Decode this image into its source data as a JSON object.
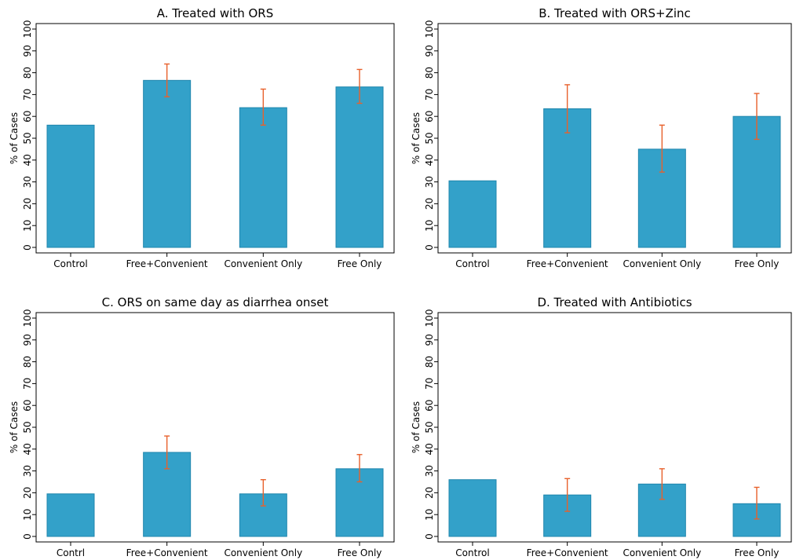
{
  "chart_data": [
    {
      "type": "bar",
      "title": "A. Treated with ORS",
      "ylabel": "% of Cases",
      "xlabel": "",
      "ylim": [
        0,
        100
      ],
      "yticks": [
        0,
        10,
        20,
        30,
        40,
        50,
        60,
        70,
        80,
        90,
        100
      ],
      "categories": [
        "Control",
        "Free+Convenient",
        "Convenient Only",
        "Free Only"
      ],
      "values": [
        56,
        76.5,
        64,
        73.5
      ],
      "error_low": [
        null,
        69,
        56,
        66
      ],
      "error_high": [
        null,
        84,
        72.5,
        81.5
      ]
    },
    {
      "type": "bar",
      "title": "B. Treated with ORS+Zinc",
      "ylabel": "% of Cases",
      "xlabel": "",
      "ylim": [
        0,
        100
      ],
      "yticks": [
        0,
        10,
        20,
        30,
        40,
        50,
        60,
        70,
        80,
        90,
        100
      ],
      "categories": [
        "Control",
        "Free+Convenient",
        "Convenient Only",
        "Free Only"
      ],
      "values": [
        30.5,
        63.5,
        45,
        60
      ],
      "error_low": [
        null,
        52.5,
        34.5,
        49.5
      ],
      "error_high": [
        null,
        74.5,
        56,
        70.5
      ]
    },
    {
      "type": "bar",
      "title": "C. ORS on same day as diarrhea onset",
      "ylabel": "% of Cases",
      "xlabel": "",
      "ylim": [
        0,
        100
      ],
      "yticks": [
        0,
        10,
        20,
        30,
        40,
        50,
        60,
        70,
        80,
        90,
        100
      ],
      "categories": [
        "Contrl",
        "Free+Convenient",
        "Convenient Only",
        "Free Only"
      ],
      "values": [
        19.5,
        38.5,
        19.5,
        31
      ],
      "error_low": [
        null,
        31,
        14,
        25
      ],
      "error_high": [
        null,
        46,
        26,
        37.5
      ]
    },
    {
      "type": "bar",
      "title": "D. Treated with Antibiotics",
      "ylabel": "% of Cases",
      "xlabel": "",
      "ylim": [
        0,
        100
      ],
      "yticks": [
        0,
        10,
        20,
        30,
        40,
        50,
        60,
        70,
        80,
        90,
        100
      ],
      "categories": [
        "Control",
        "Free+Convenient",
        "Convenient Only",
        "Free Only"
      ],
      "values": [
        26,
        19,
        24,
        15
      ],
      "error_low": [
        null,
        11.5,
        17,
        8
      ],
      "error_high": [
        null,
        26.5,
        31,
        22.5
      ]
    }
  ],
  "colors": {
    "bar_fill": "#33a1c9",
    "bar_edge": "#1f86ad",
    "error_bar": "#e8612c",
    "axis": "#000000"
  }
}
